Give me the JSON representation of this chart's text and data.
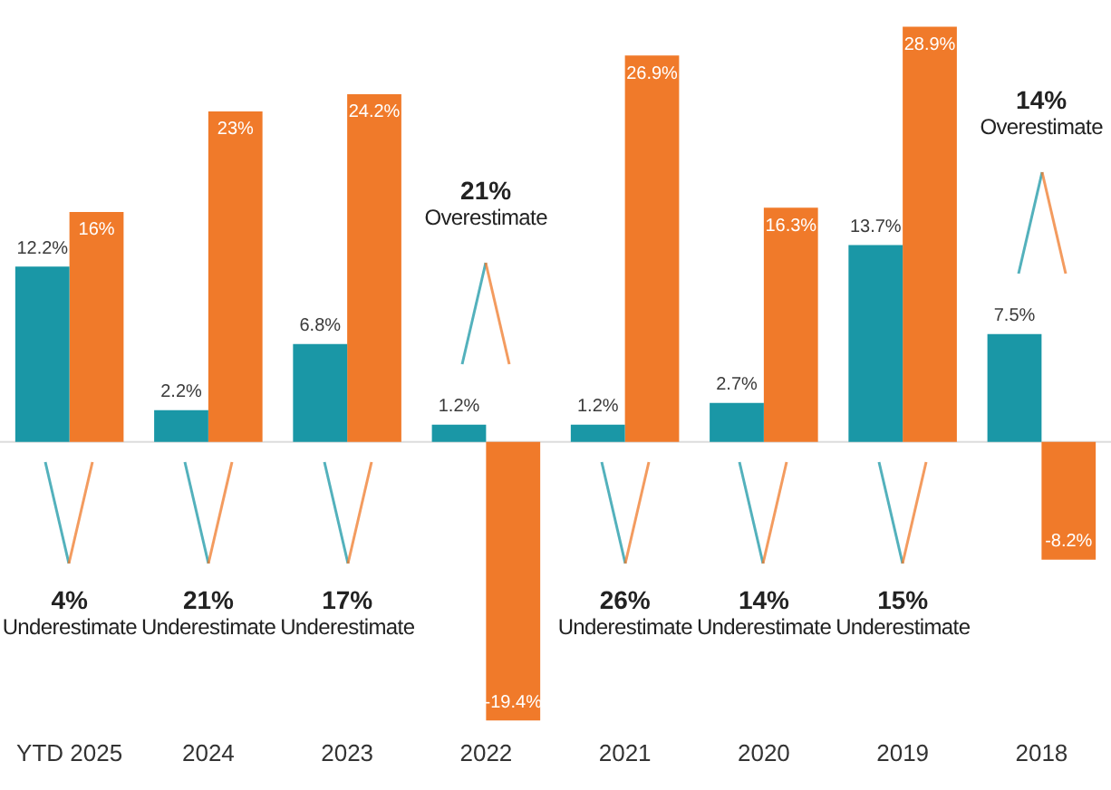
{
  "chart_data": {
    "type": "bar",
    "categories": [
      "YTD 2025",
      "2024",
      "2023",
      "2022",
      "2021",
      "2020",
      "2019",
      "2018"
    ],
    "series": [
      {
        "color": "#1a97a6",
        "values": [
          12.2,
          2.2,
          6.8,
          1.2,
          1.2,
          2.7,
          13.7,
          7.5
        ],
        "value_labels": [
          "12.2%",
          "2.2%",
          "6.8%",
          "1.2%",
          "1.2%",
          "2.7%",
          "13.7%",
          "7.5%"
        ]
      },
      {
        "color": "#f07a2a",
        "values": [
          16,
          23,
          24.2,
          -19.4,
          26.9,
          16.3,
          28.9,
          -8.2
        ],
        "value_labels": [
          "16%",
          "23%",
          "24.2%",
          "-19.4%",
          "26.9%",
          "16.3%",
          "28.9%",
          "-8.2%"
        ]
      }
    ],
    "tick_labels": "x",
    "grid": false,
    "legend": false,
    "annotations": [
      "4%\nUnderestimate",
      "21%\nUnderestimate",
      "17%\nUnderestimate",
      "21%\nOverestimate",
      "26%\nUnderestimate",
      "14%\nUnderestimate",
      "15%\nUnderestimate",
      "14%\nOverestimate"
    ]
  }
}
